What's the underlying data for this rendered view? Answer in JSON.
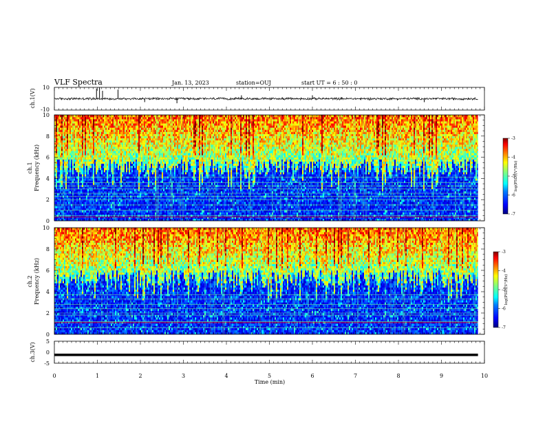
{
  "header": {
    "title": "VLF Spectra",
    "date": "Jan. 13, 2023",
    "station": "station=OUJ",
    "start": "start  UT =   6  : 50 : 0"
  },
  "colors": {
    "spectrogram_scale": [
      "#00007f",
      "#0000ff",
      "#0080ff",
      "#00ffff",
      "#80ff80",
      "#ffff00",
      "#ff8000",
      "#ff0000",
      "#7f0000"
    ],
    "trace": "#000000"
  },
  "chart_data": [
    {
      "type": "line",
      "panel": "ch1-waveform",
      "ylabel": "ch.1(V)",
      "ylim": [
        -10,
        10
      ],
      "yticks": [
        "10",
        "-10"
      ],
      "xlim": [
        0,
        10
      ],
      "baseline_v": 0,
      "band_v": [
        -1.2,
        1.2
      ],
      "data_end_min": 9.85,
      "spikes": [
        {
          "x": 0.98,
          "y": 9
        },
        {
          "x": 1.05,
          "y": 10
        },
        {
          "x": 1.12,
          "y": 7
        },
        {
          "x": 1.48,
          "y": 8
        },
        {
          "x": 2.1,
          "y": -3
        },
        {
          "x": 2.85,
          "y": -4
        },
        {
          "x": 4.35,
          "y": 3
        },
        {
          "x": 6.0,
          "y": 3
        },
        {
          "x": 8.6,
          "y": -3
        }
      ]
    },
    {
      "type": "heatmap",
      "panel": "ch1-spectrogram",
      "ylabel_line1": "ch.1",
      "ylabel_line2": "Frequency (kHz)",
      "ylim": [
        0,
        10
      ],
      "yticks": [
        "0",
        "2",
        "4",
        "6",
        "8",
        "10"
      ],
      "xlim": [
        0,
        10
      ],
      "data_end_min": 9.85,
      "lower_blue_boundary_khz": 5.0,
      "colorbar": {
        "label": "log(PSD)(V²/Hz)",
        "range": [
          -7,
          -3
        ],
        "ticks": [
          "-3",
          "-4",
          "-5",
          "-6",
          "-7"
        ]
      },
      "horizontal_lines_khz": [
        0.5,
        1.0,
        1.5,
        2.0,
        2.3,
        2.6,
        3.0,
        3.3,
        3.6,
        4.1
      ],
      "red_line_khz": [
        0.35
      ]
    },
    {
      "type": "heatmap",
      "panel": "ch2-spectrogram",
      "ylabel_line1": "ch.2",
      "ylabel_line2": "Frequency (kHz)",
      "ylim": [
        0,
        10
      ],
      "yticks": [
        "0",
        "2",
        "4",
        "6",
        "8",
        "10"
      ],
      "xlim": [
        0,
        10
      ],
      "data_end_min": 9.85,
      "lower_blue_boundary_khz": 5.2,
      "colorbar": {
        "label": "log(PSD)(V²/Hz)",
        "range": [
          -7,
          -3
        ],
        "ticks": [
          "-3",
          "-4",
          "-5",
          "-6",
          "-7"
        ]
      },
      "horizontal_lines_khz": [
        0.6,
        1.2,
        1.8,
        2.0,
        2.4,
        2.8,
        3.3,
        3.7
      ],
      "red_line_khz": [
        1.1
      ]
    },
    {
      "type": "line",
      "panel": "ch3-waveform",
      "ylabel": "ch.3(V)",
      "ylim": [
        -5,
        5
      ],
      "yticks": [
        "5",
        "0",
        "-5"
      ],
      "xlim": [
        0,
        10
      ],
      "value_v": -1.2,
      "data_end_min": 9.85,
      "xlabel": "Time (min)",
      "xticks": [
        "0",
        "1",
        "2",
        "3",
        "4",
        "5",
        "6",
        "7",
        "8",
        "9",
        "10"
      ]
    }
  ]
}
